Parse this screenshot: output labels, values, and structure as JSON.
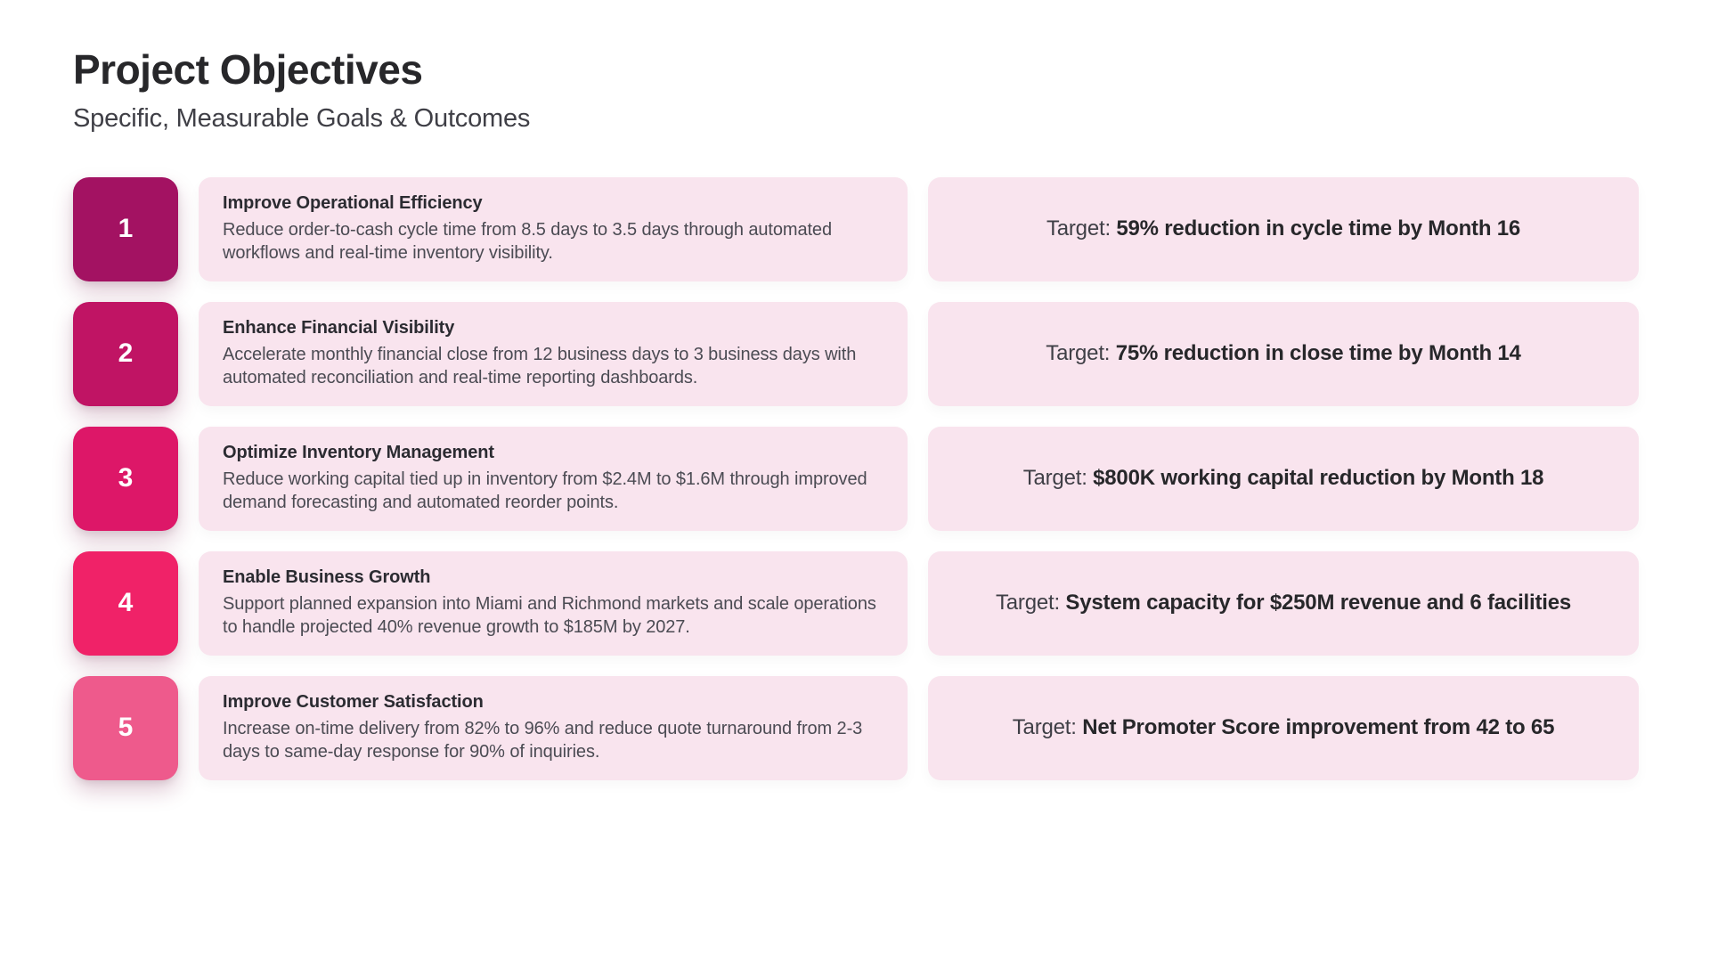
{
  "page": {
    "title": "Project Objectives",
    "subtitle": "Specific, Measurable Goals & Outcomes"
  },
  "target_label": "Target: ",
  "colors": {
    "card_background": "#f9e4ee",
    "badge_text": "#ffffff"
  },
  "objectives": [
    {
      "number": "1",
      "badge_color": "#a31262",
      "title": "Improve Operational Efficiency",
      "description": "Reduce order-to-cash cycle time from 8.5 days to 3.5 days through automated workflows and real-time inventory visibility.",
      "target": "59% reduction in cycle time by Month 16"
    },
    {
      "number": "2",
      "badge_color": "#c01464",
      "title": "Enhance Financial Visibility",
      "description": "Accelerate monthly financial close from 12 business days to 3 business days with automated reconciliation and real-time reporting dashboards.",
      "target": "75% reduction in close time by Month 14"
    },
    {
      "number": "3",
      "badge_color": "#dd1768",
      "title": "Optimize Inventory Management",
      "description": "Reduce working capital tied up in inventory from $2.4M to $1.6M through improved demand forecasting and automated reorder points.",
      "target": "$800K working capital reduction by Month 18"
    },
    {
      "number": "4",
      "badge_color": "#f02268",
      "title": "Enable Business Growth",
      "description": "Support planned expansion into Miami and Richmond markets and scale operations to handle projected 40% revenue growth to $185M by 2027.",
      "target": "System capacity for $250M revenue and 6 facilities"
    },
    {
      "number": "5",
      "badge_color": "#ee5a8c",
      "title": "Improve Customer Satisfaction",
      "description": "Increase on-time delivery from 82% to 96% and reduce quote turnaround from 2-3 days to same-day response for 90% of inquiries.",
      "target": "Net Promoter Score improvement from 42 to 65"
    }
  ]
}
